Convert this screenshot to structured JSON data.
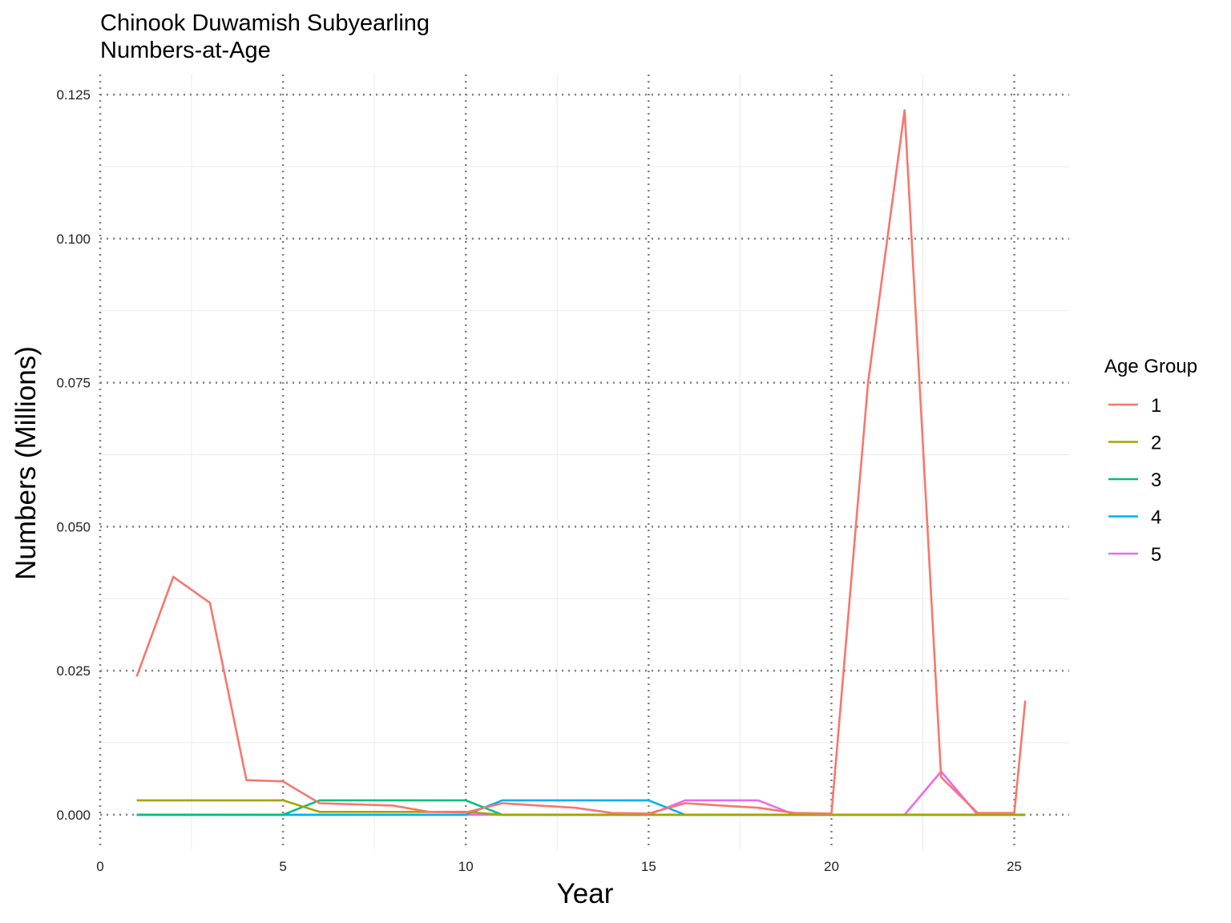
{
  "chart_data": {
    "type": "line",
    "title": [
      "Chinook Duwamish Subyearling",
      "Numbers-at-Age"
    ],
    "xlabel": "Year",
    "ylabel": "Numbers (Millions)",
    "xlim": [
      0,
      26.5
    ],
    "ylim": [
      -0.006,
      0.1285
    ],
    "x_ticks": [
      0,
      5,
      10,
      15,
      20,
      25
    ],
    "x_tick_labels": [
      "0",
      "5",
      "10",
      "15",
      "20",
      "25"
    ],
    "y_ticks": [
      0,
      0.025,
      0.05,
      0.075,
      0.1,
      0.125
    ],
    "y_tick_labels": [
      "0.000",
      "0.025",
      "0.050",
      "0.075",
      "0.100",
      "0.125"
    ],
    "grid": true,
    "legend": {
      "title": "Age Group",
      "placement": "right"
    },
    "series": [
      {
        "name": "1",
        "color": "#F8766D",
        "x": [
          1,
          2,
          3,
          4,
          5,
          6,
          7,
          8,
          9,
          10,
          11,
          12,
          13,
          14,
          15,
          16,
          17,
          18,
          19,
          20,
          21,
          22,
          23,
          24,
          25,
          25.3
        ],
        "y": [
          0.024,
          0.0413,
          0.0368,
          0.006,
          0.0058,
          0.002,
          0.0018,
          0.0016,
          0.0005,
          0.0004,
          0.002,
          0.0016,
          0.0012,
          0.0003,
          0.0002,
          0.002,
          0.0016,
          0.0012,
          0.0003,
          0.0002,
          0.075,
          0.1223,
          0.0065,
          0.0003,
          0.0003,
          0.0198
        ]
      },
      {
        "name": "2",
        "color": "#A3A500",
        "x": [
          1,
          2,
          3,
          4,
          5,
          6,
          7,
          8,
          9,
          10,
          11,
          12,
          13,
          14,
          15,
          16,
          17,
          18,
          19,
          20,
          21,
          22,
          23,
          24,
          25,
          25.3
        ],
        "y": [
          0.0025,
          0.0025,
          0.0025,
          0.0025,
          0.0025,
          0.0005,
          0.0005,
          0.0005,
          0.0005,
          0.0005,
          0,
          0,
          0,
          0,
          0,
          0,
          0,
          0,
          0,
          0,
          0,
          0,
          0,
          0,
          0,
          0
        ]
      },
      {
        "name": "3",
        "color": "#00BF7D",
        "x": [
          1,
          2,
          3,
          4,
          5,
          6,
          7,
          8,
          9,
          10,
          11,
          12,
          13,
          14,
          15,
          16,
          17,
          18,
          19,
          20,
          21,
          22,
          23,
          24,
          25,
          25.3
        ],
        "y": [
          0,
          0,
          0,
          0,
          0,
          0.0025,
          0.0025,
          0.0025,
          0.0025,
          0.0025,
          0,
          0,
          0,
          0,
          0,
          0,
          0,
          0,
          0,
          0,
          0,
          0,
          0,
          0,
          0,
          0
        ]
      },
      {
        "name": "4",
        "color": "#00B0F6",
        "x": [
          1,
          2,
          3,
          4,
          5,
          6,
          7,
          8,
          9,
          10,
          11,
          12,
          13,
          14,
          15,
          16,
          17,
          18,
          19,
          20,
          21,
          22,
          23,
          24,
          25,
          25.3
        ],
        "y": [
          0,
          0,
          0,
          0,
          0,
          0,
          0,
          0,
          0,
          0,
          0.0025,
          0.0025,
          0.0025,
          0.0025,
          0.0025,
          0,
          0,
          0,
          0,
          0,
          0,
          0,
          0,
          0,
          0,
          0
        ]
      },
      {
        "name": "5",
        "color": "#E76BF3",
        "x": [
          1,
          2,
          3,
          4,
          5,
          6,
          7,
          8,
          9,
          10,
          11,
          12,
          13,
          14,
          15,
          16,
          17,
          18,
          19,
          20,
          21,
          22,
          23,
          24,
          25,
          25.3
        ],
        "y": [
          0,
          0,
          0,
          0,
          0,
          0,
          0,
          0,
          0,
          0,
          0,
          0,
          0,
          0,
          0,
          0.0025,
          0.0025,
          0.0025,
          0,
          0,
          0,
          0,
          0.0075,
          0,
          0,
          0
        ]
      }
    ]
  }
}
